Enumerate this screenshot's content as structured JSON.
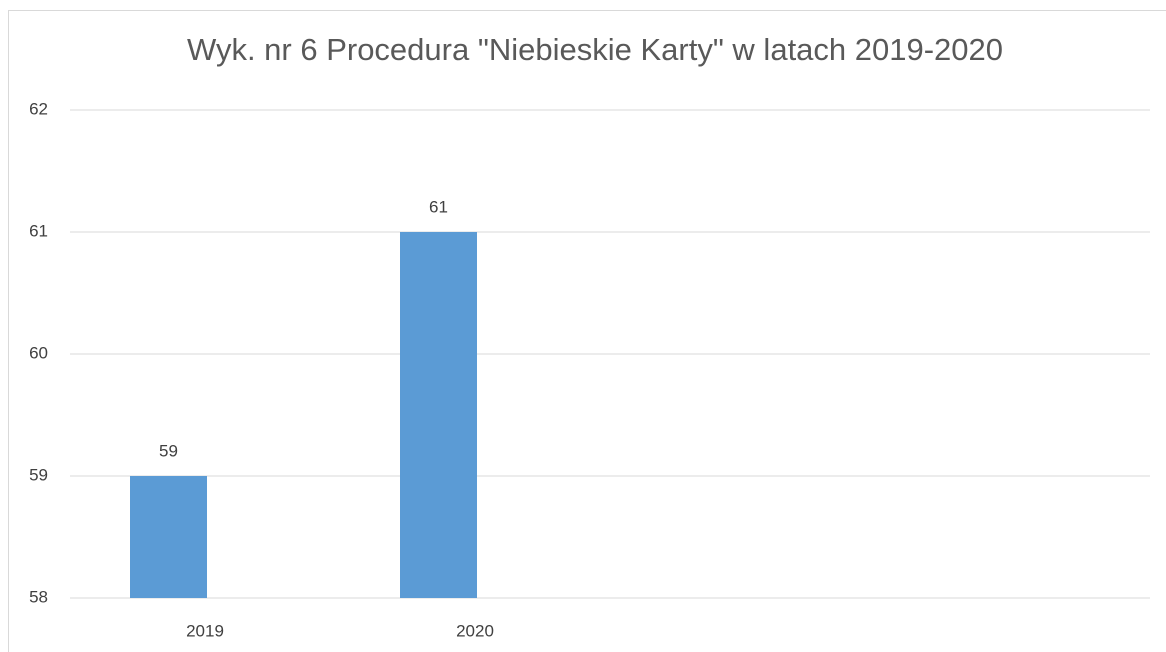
{
  "chart_data": {
    "type": "bar",
    "title": "Wyk. nr 6 Procedura \"Niebieskie Karty\" w latach 2019-2020",
    "categories": [
      "2019",
      "2020",
      null,
      null
    ],
    "values": [
      59,
      61,
      null,
      null
    ],
    "color": "#5b9bd5",
    "ylim": [
      58,
      62
    ],
    "yticks": [
      58,
      59,
      60,
      61,
      62
    ],
    "grid": true
  }
}
